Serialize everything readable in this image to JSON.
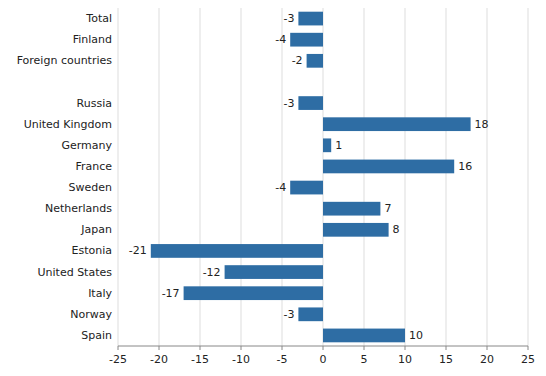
{
  "chart_data": {
    "type": "bar",
    "orientation": "horizontal",
    "categories": [
      "Total",
      "Finland",
      "Foreign countries",
      null,
      "Russia",
      "United Kingdom",
      "Germany",
      "France",
      "Sweden",
      "Netherlands",
      "Japan",
      "Estonia",
      "United States",
      "Italy",
      "Norway",
      "Spain"
    ],
    "values": [
      -3,
      -4,
      -2,
      null,
      -3,
      18,
      1,
      16,
      -4,
      7,
      8,
      -21,
      -12,
      -17,
      -3,
      10
    ],
    "color": "#2E6DA4",
    "xlim": [
      -25,
      25
    ],
    "xticks": [
      -25,
      -20,
      -15,
      -10,
      -5,
      0,
      5,
      10,
      15,
      20,
      25
    ],
    "grid": true,
    "data_labels": true
  }
}
